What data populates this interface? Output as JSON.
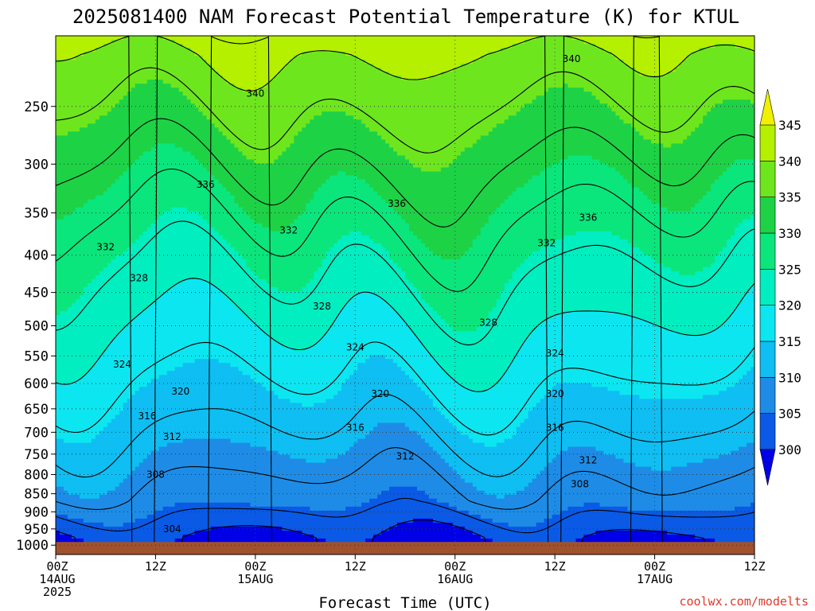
{
  "title": "2025081400 NAM Forecast Potential Temperature (K) for KTUL",
  "credit": "coolwx.com/modelts",
  "chart_data": {
    "type": "heatmap",
    "title": "2025081400 NAM Forecast Potential Temperature (K) for KTUL",
    "xlabel": "Forecast Time (UTC)",
    "ylabel": "",
    "x_tick_labels": [
      {
        "hour": 0,
        "lines": [
          "00Z",
          "14AUG",
          "2025"
        ]
      },
      {
        "hour": 12,
        "lines": [
          "12Z"
        ]
      },
      {
        "hour": 24,
        "lines": [
          "00Z",
          "15AUG"
        ]
      },
      {
        "hour": 36,
        "lines": [
          "12Z"
        ]
      },
      {
        "hour": 48,
        "lines": [
          "00Z",
          "16AUG"
        ]
      },
      {
        "hour": 60,
        "lines": [
          "12Z"
        ]
      },
      {
        "hour": 72,
        "lines": [
          "00Z",
          "17AUG"
        ]
      },
      {
        "hour": 84,
        "lines": [
          "12Z"
        ]
      }
    ],
    "xlim_hours": [
      0,
      84
    ],
    "y_ticks_hPa": [
      250,
      300,
      350,
      400,
      450,
      500,
      550,
      600,
      650,
      700,
      750,
      800,
      850,
      900,
      950,
      1000
    ],
    "ylim_hPa": [
      1030,
      200
    ],
    "y_scale": "log",
    "ground_level_hPa": 990,
    "colorbar": {
      "levels": [
        300,
        305,
        310,
        315,
        320,
        325,
        330,
        335,
        340,
        345
      ],
      "colors": [
        "#0000e6",
        "#0a5ae6",
        "#1e8ce6",
        "#0fbef2",
        "#0ce6f0",
        "#00eec0",
        "#0ae67c",
        "#1ed246",
        "#6ee61e",
        "#b4f000",
        "#f0f000"
      ],
      "extend": "both"
    },
    "grid": "dotted",
    "contour_interval_K": 4,
    "contour_labels": [
      {
        "value": 340,
        "x_hours": 24,
        "p_hPa": 240
      },
      {
        "value": 340,
        "x_hours": 62,
        "p_hPa": 215
      },
      {
        "value": 336,
        "x_hours": 18,
        "p_hPa": 320
      },
      {
        "value": 336,
        "x_hours": 41,
        "p_hPa": 340
      },
      {
        "value": 336,
        "x_hours": 64,
        "p_hPa": 355
      },
      {
        "value": 332,
        "x_hours": 6,
        "p_hPa": 390
      },
      {
        "value": 332,
        "x_hours": 28,
        "p_hPa": 370
      },
      {
        "value": 332,
        "x_hours": 59,
        "p_hPa": 385
      },
      {
        "value": 328,
        "x_hours": 10,
        "p_hPa": 430
      },
      {
        "value": 328,
        "x_hours": 32,
        "p_hPa": 470
      },
      {
        "value": 328,
        "x_hours": 52,
        "p_hPa": 495
      },
      {
        "value": 324,
        "x_hours": 8,
        "p_hPa": 565
      },
      {
        "value": 324,
        "x_hours": 36,
        "p_hPa": 535
      },
      {
        "value": 324,
        "x_hours": 60,
        "p_hPa": 545
      },
      {
        "value": 320,
        "x_hours": 15,
        "p_hPa": 615
      },
      {
        "value": 320,
        "x_hours": 39,
        "p_hPa": 620
      },
      {
        "value": 320,
        "x_hours": 60,
        "p_hPa": 620
      },
      {
        "value": 316,
        "x_hours": 11,
        "p_hPa": 665
      },
      {
        "value": 316,
        "x_hours": 36,
        "p_hPa": 690
      },
      {
        "value": 316,
        "x_hours": 60,
        "p_hPa": 690
      },
      {
        "value": 312,
        "x_hours": 14,
        "p_hPa": 710
      },
      {
        "value": 312,
        "x_hours": 42,
        "p_hPa": 755
      },
      {
        "value": 312,
        "x_hours": 64,
        "p_hPa": 765
      },
      {
        "value": 308,
        "x_hours": 12,
        "p_hPa": 800
      },
      {
        "value": 308,
        "x_hours": 63,
        "p_hPa": 825
      },
      {
        "value": 304,
        "x_hours": 14,
        "p_hPa": 950
      }
    ]
  }
}
